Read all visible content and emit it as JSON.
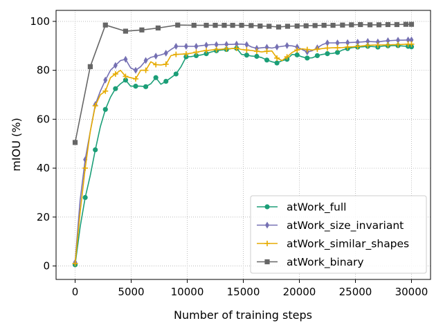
{
  "chart_data": {
    "type": "line",
    "title": "",
    "xlabel": "Number of training steps",
    "ylabel": "mIOU (%)",
    "xlim": [
      -1700,
      31700
    ],
    "ylim": [
      -5.5,
      104.5
    ],
    "xticks": [
      0,
      5000,
      10000,
      15000,
      20000,
      25000,
      30000
    ],
    "yticks": [
      0,
      20,
      40,
      60,
      80,
      100
    ],
    "grid": true,
    "legend_position": "bottom-right",
    "series": [
      {
        "name": "atWork_full",
        "color": "#1b9e77",
        "marker": "circle",
        "marker_every": 2,
        "x": [
          0,
          450,
          900,
          1350,
          1800,
          2250,
          2700,
          3150,
          3600,
          4050,
          4500,
          4950,
          5400,
          5850,
          6300,
          6750,
          7200,
          7650,
          8100,
          8550,
          9000,
          9450,
          9900,
          10350,
          10800,
          11250,
          11700,
          12150,
          12600,
          13050,
          13500,
          13950,
          14400,
          14850,
          15300,
          15750,
          16200,
          16650,
          17100,
          17550,
          18000,
          18450,
          18900,
          19350,
          19800,
          20250,
          20700,
          21150,
          21600,
          22050,
          22500,
          22950,
          23400,
          23850,
          24300,
          24750,
          25200,
          25650,
          26100,
          26550,
          27000,
          27450,
          27900,
          28350,
          28800,
          29250,
          29700,
          30000
        ],
        "y": [
          0.5,
          16,
          28,
          37,
          47.5,
          57,
          64,
          69,
          72.5,
          74.5,
          76,
          73.5,
          73.5,
          73.5,
          73.3,
          74.5,
          77,
          74.3,
          75.5,
          77,
          78.5,
          81.5,
          85.5,
          85.6,
          86,
          86.3,
          86.8,
          87.5,
          88,
          88.3,
          88.5,
          88.9,
          89,
          86.5,
          86.2,
          85.8,
          85.7,
          85.2,
          84.2,
          83.5,
          83,
          83.9,
          84.5,
          86.5,
          86.3,
          85.5,
          85,
          85.1,
          86,
          86.5,
          86.8,
          86.9,
          87.3,
          88.3,
          88.9,
          89.3,
          89.5,
          89.6,
          89.8,
          89.7,
          89.5,
          89.9,
          90,
          90.1,
          90.1,
          89.9,
          89.8,
          89.6
        ]
      },
      {
        "name": "atWork_size_invariant",
        "color": "#7570b3",
        "marker": "diamond",
        "marker_every": 2,
        "x": [
          0,
          450,
          900,
          1350,
          1800,
          2250,
          2700,
          3150,
          3600,
          4050,
          4500,
          4950,
          5400,
          5850,
          6300,
          6750,
          7200,
          7650,
          8100,
          8550,
          9000,
          9450,
          9900,
          10350,
          10800,
          11250,
          11700,
          12150,
          12600,
          13050,
          13500,
          13950,
          14400,
          14850,
          15300,
          15750,
          16200,
          16650,
          17100,
          17550,
          18000,
          18450,
          18900,
          19350,
          19800,
          20250,
          20700,
          21150,
          21600,
          22050,
          22500,
          22950,
          23400,
          23850,
          24300,
          24750,
          25200,
          25650,
          26100,
          26550,
          27000,
          27450,
          27900,
          28350,
          28800,
          29250,
          29700,
          30000
        ],
        "y": [
          1.5,
          27,
          43.5,
          55,
          66,
          71.5,
          76,
          80,
          82,
          84,
          84.5,
          81,
          80,
          81.5,
          84,
          85.3,
          85.8,
          86.3,
          87,
          88.5,
          89.8,
          89.8,
          89.8,
          89.8,
          89.8,
          90.1,
          90.3,
          90.5,
          90.5,
          90.5,
          90.6,
          90.6,
          90.7,
          90.7,
          90.5,
          89.5,
          89,
          89.2,
          89.4,
          89.1,
          89.5,
          89.8,
          90.1,
          90,
          89.5,
          88.5,
          87.5,
          88,
          89.2,
          90.5,
          91.2,
          91.2,
          91.2,
          91.3,
          91.3,
          91.4,
          91.5,
          91.6,
          91.8,
          91.7,
          91.6,
          91.9,
          92.1,
          92.2,
          92.3,
          92.3,
          92.4,
          92.4
        ]
      },
      {
        "name": "atWork_similar_shapes",
        "color": "#e6ab02",
        "marker": "plus",
        "marker_every": 2,
        "x": [
          0,
          450,
          900,
          1350,
          1800,
          2250,
          2700,
          3150,
          3600,
          4050,
          4500,
          4950,
          5400,
          5850,
          6300,
          6750,
          7200,
          7650,
          8100,
          8550,
          9000,
          9450,
          9900,
          10350,
          10800,
          11250,
          11700,
          12150,
          12600,
          13050,
          13500,
          13950,
          14400,
          14850,
          15300,
          15750,
          16200,
          16650,
          17100,
          17550,
          18000,
          18450,
          18900,
          19350,
          19800,
          20250,
          20700,
          21150,
          21600,
          22050,
          22500,
          22950,
          23400,
          23850,
          24300,
          24750,
          25200,
          25650,
          26100,
          26550,
          27000,
          27450,
          27900,
          28350,
          28800,
          29250,
          29700,
          30000
        ],
        "y": [
          1,
          22,
          40,
          55,
          65.5,
          70,
          71.5,
          77,
          78.5,
          80,
          77.5,
          77,
          76.5,
          80,
          80,
          83.5,
          82.3,
          82.2,
          82.5,
          86,
          86.5,
          86.6,
          86.7,
          87,
          87.4,
          87.8,
          88.1,
          88.3,
          88.5,
          88.6,
          88.8,
          88.9,
          89,
          88.5,
          88.3,
          88.1,
          87.8,
          87.5,
          87.8,
          87.9,
          85,
          84,
          85.5,
          87.3,
          88.3,
          88.8,
          88.5,
          88.3,
          88.6,
          88.9,
          89.1,
          89.2,
          89.2,
          89.3,
          89.5,
          89.6,
          89.8,
          90,
          90.2,
          90.3,
          90.3,
          90.4,
          90.4,
          90.5,
          90.5,
          90.6,
          90.7,
          90.7
        ]
      },
      {
        "name": "atWork_binary",
        "color": "#666666",
        "marker": "square",
        "marker_every": 1,
        "x": [
          0,
          1350,
          2700,
          4500,
          5950,
          7400,
          9150,
          10600,
          11700,
          12500,
          13300,
          14050,
          14850,
          15700,
          16500,
          17300,
          18150,
          18950,
          19800,
          20600,
          21400,
          22200,
          23000,
          23850,
          24650,
          25450,
          26300,
          27100,
          27900,
          28700,
          29500,
          30000
        ],
        "y": [
          50.5,
          81.5,
          98.5,
          96,
          96.5,
          97.3,
          98.5,
          98.4,
          98.4,
          98.4,
          98.4,
          98.4,
          98.4,
          98.3,
          98.1,
          98,
          97.7,
          98,
          98.1,
          98.2,
          98.3,
          98.4,
          98.4,
          98.5,
          98.6,
          98.7,
          98.6,
          98.6,
          98.7,
          98.7,
          98.8,
          98.8
        ]
      }
    ]
  }
}
